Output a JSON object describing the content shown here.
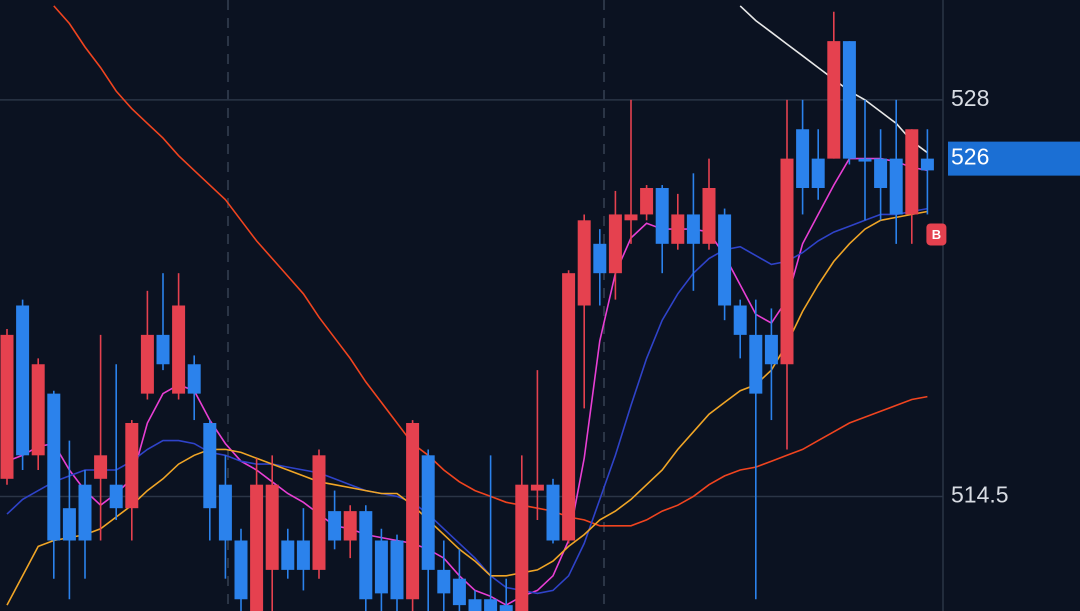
{
  "chart_data": {
    "type": "candlestick",
    "open": [
      515.1,
      521.0,
      515.9,
      518.0,
      514.1,
      514.9,
      515.1,
      514.9,
      514.1,
      518.0,
      520.0,
      518.0,
      519.0,
      517.0,
      514.9,
      513.0,
      510.6,
      512.0,
      513.0,
      513.0,
      512.0,
      514.0,
      513.0,
      514.0,
      513.0,
      513.0,
      511.0,
      515.9,
      512.0,
      511.7,
      511.0,
      511.0,
      510.8,
      510.5,
      514.7,
      514.9,
      513.0,
      521.0,
      523.1,
      522.1,
      523.9,
      524.1,
      525.0,
      523.1,
      524.1,
      523.1,
      524.1,
      521.0,
      520.0,
      520.0,
      519.0,
      527.0,
      526.0,
      526.0,
      530.0,
      526.0,
      526.0,
      526.0,
      524.1,
      526.0
    ],
    "high": [
      520.2,
      521.2,
      519.2,
      518.1,
      516.4,
      515.4,
      520.0,
      519.0,
      517.1,
      521.5,
      522.1,
      522.1,
      519.3,
      517.1,
      515.9,
      513.4,
      515.8,
      515.9,
      513.4,
      514.1,
      516.1,
      514.7,
      514.2,
      514.2,
      513.4,
      513.2,
      517.1,
      516.1,
      513.0,
      512.7,
      511.3,
      515.9,
      511.7,
      515.9,
      518.8,
      515.1,
      522.2,
      524.1,
      523.6,
      524.9,
      528.0,
      525.1,
      525.1,
      524.8,
      525.5,
      526.0,
      524.3,
      521.2,
      521.2,
      520.9,
      528.0,
      528.0,
      527.0,
      531.0,
      530.0,
      528.0,
      527.0,
      528.0,
      527.0,
      527.0
    ],
    "low": [
      514.9,
      515.4,
      515.4,
      511.7,
      511.0,
      511.7,
      513.0,
      513.7,
      513.0,
      517.8,
      518.8,
      517.8,
      517.1,
      513.0,
      511.7,
      510.4,
      510.4,
      510.4,
      511.7,
      511.3,
      511.7,
      512.7,
      512.4,
      510.4,
      510.4,
      510.4,
      510.4,
      510.4,
      510.4,
      510.4,
      510.4,
      510.4,
      510.4,
      510.4,
      513.7,
      512.9,
      512.9,
      517.5,
      521.0,
      521.2,
      523.1,
      523.9,
      522.1,
      522.9,
      521.5,
      522.9,
      520.5,
      519.2,
      511.0,
      517.1,
      516.1,
      524.1,
      524.6,
      526.0,
      525.8,
      523.9,
      523.9,
      523.1,
      523.1,
      524.1
    ],
    "close": [
      520.0,
      515.9,
      519.0,
      513.0,
      513.0,
      513.0,
      515.9,
      514.1,
      517.0,
      520.0,
      519.0,
      521.0,
      518.0,
      514.1,
      513.0,
      511.0,
      514.9,
      514.9,
      512.0,
      512.0,
      515.9,
      513.0,
      514.0,
      511.0,
      511.2,
      511.0,
      517.0,
      512.0,
      511.2,
      510.8,
      510.5,
      510.5,
      510.5,
      514.9,
      514.9,
      513.0,
      522.1,
      523.9,
      522.1,
      524.1,
      524.1,
      525.0,
      523.1,
      524.1,
      523.1,
      525.0,
      521.0,
      520.0,
      518.0,
      519.0,
      526.0,
      525.0,
      525.0,
      530.0,
      526.0,
      525.9,
      525.0,
      524.1,
      527.0,
      525.6
    ],
    "up_color": "#e5414f",
    "down_color": "#2b82ec",
    "ylim": [
      510.6,
      531.4
    ],
    "yticks": [
      528,
      514.5
    ],
    "grid": true,
    "series": [
      {
        "color": "#e8e8e8",
        "values": [
          null,
          null,
          null,
          null,
          null,
          null,
          null,
          null,
          null,
          null,
          null,
          null,
          null,
          null,
          null,
          null,
          null,
          null,
          null,
          null,
          null,
          null,
          null,
          null,
          null,
          null,
          null,
          null,
          null,
          null,
          null,
          null,
          null,
          null,
          null,
          null,
          null,
          null,
          null,
          null,
          null,
          null,
          null,
          null,
          null,
          null,
          null,
          531.2,
          530.7,
          530.3,
          529.9,
          529.5,
          529.1,
          528.7,
          528.3,
          528.0,
          527.6,
          527.2,
          526.6,
          526.2
        ]
      },
      {
        "color": "#f0441f",
        "values": [
          null,
          null,
          null,
          531.2,
          530.6,
          529.8,
          529.1,
          528.3,
          527.7,
          527.2,
          526.7,
          526.1,
          525.6,
          525.1,
          524.6,
          523.9,
          523.2,
          522.6,
          522.0,
          521.4,
          520.6,
          519.9,
          519.2,
          518.4,
          517.7,
          517.0,
          516.3,
          515.9,
          515.4,
          515.0,
          514.7,
          514.5,
          514.3,
          514.2,
          514.1,
          514.0,
          513.8,
          513.7,
          513.5,
          513.5,
          513.5,
          513.7,
          514.0,
          514.2,
          514.5,
          514.9,
          515.2,
          515.4,
          515.5,
          515.7,
          515.9,
          516.1,
          516.4,
          516.7,
          517.0,
          517.2,
          517.4,
          517.6,
          517.8,
          517.9
        ]
      },
      {
        "color": "#e83fd4",
        "values": [
          515.7,
          515.9,
          516.2,
          516.3,
          515.4,
          514.7,
          514.2,
          514.6,
          515.1,
          517.0,
          518.0,
          518.3,
          518.1,
          517.1,
          516.3,
          515.7,
          515.4,
          515.0,
          514.6,
          514.3,
          513.9,
          513.5,
          513.4,
          513.2,
          513.1,
          513.0,
          512.9,
          512.7,
          512.4,
          511.8,
          511.3,
          511.1,
          510.8,
          511.1,
          511.3,
          511.8,
          513.0,
          515.8,
          519.8,
          522.1,
          523.3,
          523.8,
          523.6,
          523.6,
          523.6,
          523.5,
          522.7,
          521.7,
          520.7,
          520.4,
          521.2,
          523.1,
          524.1,
          525.1,
          526.0,
          526.0,
          526.0,
          525.9,
          525.7,
          525.6
        ]
      },
      {
        "color": "#2f43c9",
        "values": [
          513.9,
          514.4,
          514.7,
          515.0,
          515.2,
          515.4,
          515.4,
          515.4,
          515.7,
          516.1,
          516.4,
          516.4,
          516.3,
          516.0,
          515.9,
          515.7,
          515.6,
          515.6,
          515.5,
          515.4,
          515.3,
          515.1,
          514.9,
          514.7,
          514.6,
          514.5,
          514.3,
          513.9,
          513.4,
          512.9,
          512.4,
          511.8,
          511.4,
          511.3,
          511.2,
          511.3,
          511.8,
          512.9,
          514.4,
          515.9,
          517.6,
          519.2,
          520.5,
          521.4,
          522.1,
          522.6,
          522.9,
          523.0,
          522.7,
          522.4,
          522.5,
          522.8,
          523.2,
          523.5,
          523.7,
          523.9,
          524.1,
          524.1,
          524.2,
          524.3
        ]
      },
      {
        "color": "#f0a526",
        "values": [
          510.8,
          511.8,
          512.8,
          513.0,
          513.1,
          513.2,
          513.4,
          513.8,
          514.2,
          514.7,
          515.1,
          515.6,
          515.9,
          516.1,
          516.1,
          516.0,
          515.8,
          515.6,
          515.4,
          515.2,
          515.0,
          514.9,
          514.8,
          514.7,
          514.6,
          514.6,
          514.2,
          513.7,
          513.2,
          512.7,
          512.3,
          511.8,
          511.8,
          511.9,
          512.0,
          512.3,
          512.8,
          513.2,
          513.7,
          514.0,
          514.4,
          514.9,
          515.4,
          516.1,
          516.7,
          517.3,
          517.7,
          518.1,
          518.3,
          518.8,
          519.7,
          520.8,
          521.7,
          522.5,
          523.1,
          523.6,
          523.9,
          524.0,
          524.1,
          524.2
        ]
      }
    ],
    "last_price": 526,
    "last_price_color": "#1b6fd4",
    "signal": "B",
    "signal_color": "#e5414f"
  }
}
